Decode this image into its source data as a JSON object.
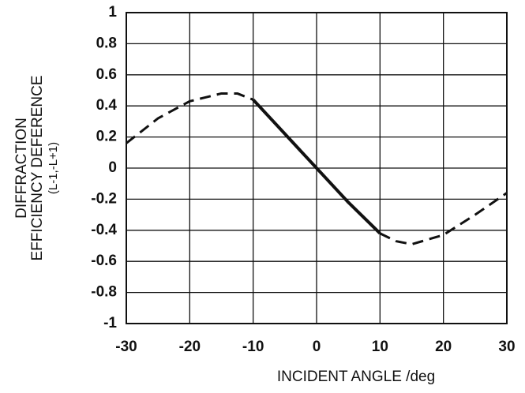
{
  "chart_data": {
    "type": "line",
    "x_label": "INCIDENT ANGLE /deg",
    "y_label": [
      "DIFFRACTION",
      "EFFICIENCY DEFERENCE",
      "(L-1,-L+1)"
    ],
    "x": [
      -30,
      -25,
      -20,
      -15,
      -12.5,
      -10,
      -5,
      0,
      5,
      10,
      12.5,
      15,
      20,
      25,
      30
    ],
    "series": [
      {
        "style": "dashed",
        "color": "#111111",
        "values": [
          0.16,
          0.32,
          0.43,
          0.48,
          0.48,
          0.44,
          null,
          null,
          null,
          -0.42,
          -0.47,
          -0.49,
          -0.43,
          -0.3,
          -0.16
        ]
      },
      {
        "style": "solid",
        "color": "#111111",
        "values": [
          null,
          null,
          null,
          null,
          null,
          0.44,
          0.22,
          0,
          -0.22,
          -0.42,
          null,
          null,
          null,
          null,
          null
        ]
      }
    ],
    "xlim": [
      -30,
      30
    ],
    "xticks": [
      -30,
      -20,
      -10,
      0,
      10,
      20,
      30
    ],
    "ylim": [
      -1,
      1
    ],
    "yticks": [
      -1,
      -0.8,
      -0.6,
      -0.4,
      -0.2,
      0,
      0.2,
      0.4,
      0.6,
      0.8,
      1
    ],
    "grid": true
  }
}
